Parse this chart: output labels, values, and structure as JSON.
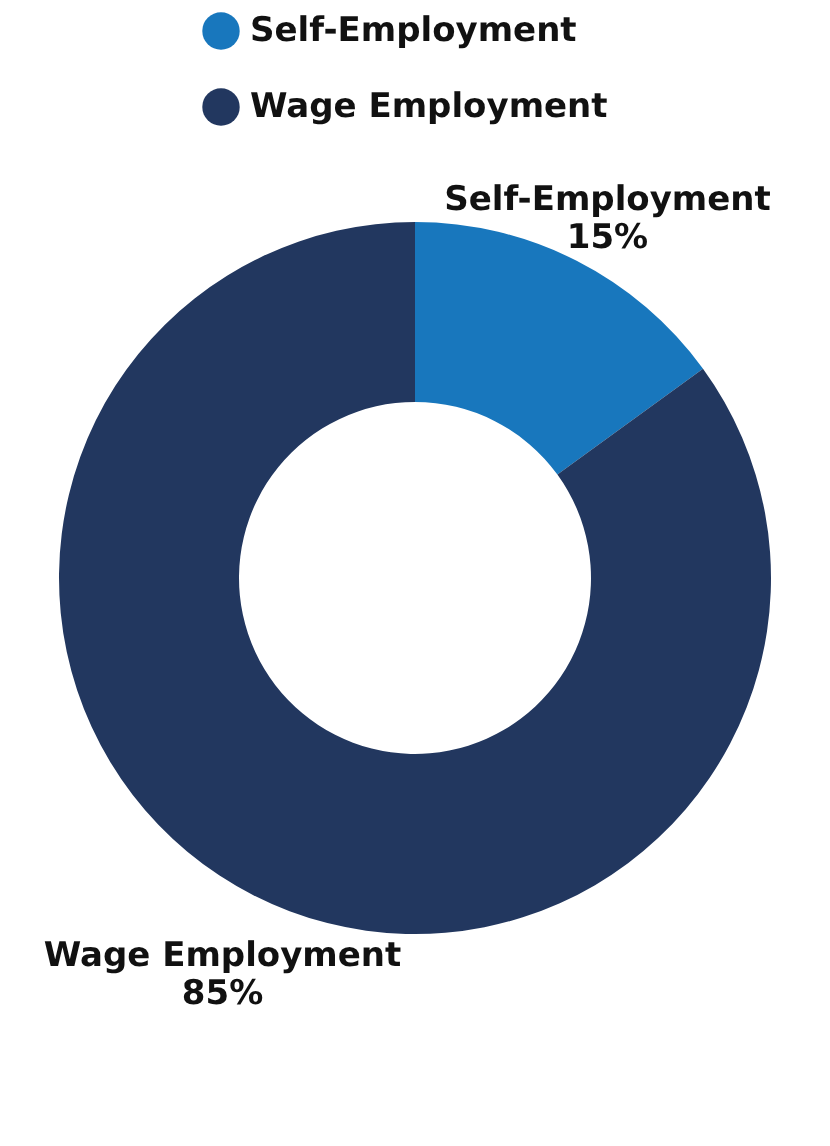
{
  "chart_data": {
    "type": "donut",
    "categories": [
      "Self-Employment",
      "Wage Employment"
    ],
    "values": [
      15,
      85
    ],
    "colors": [
      "#1877bd",
      "#22375f"
    ],
    "value_labels": [
      "15%",
      "85%"
    ],
    "legend": "top"
  }
}
